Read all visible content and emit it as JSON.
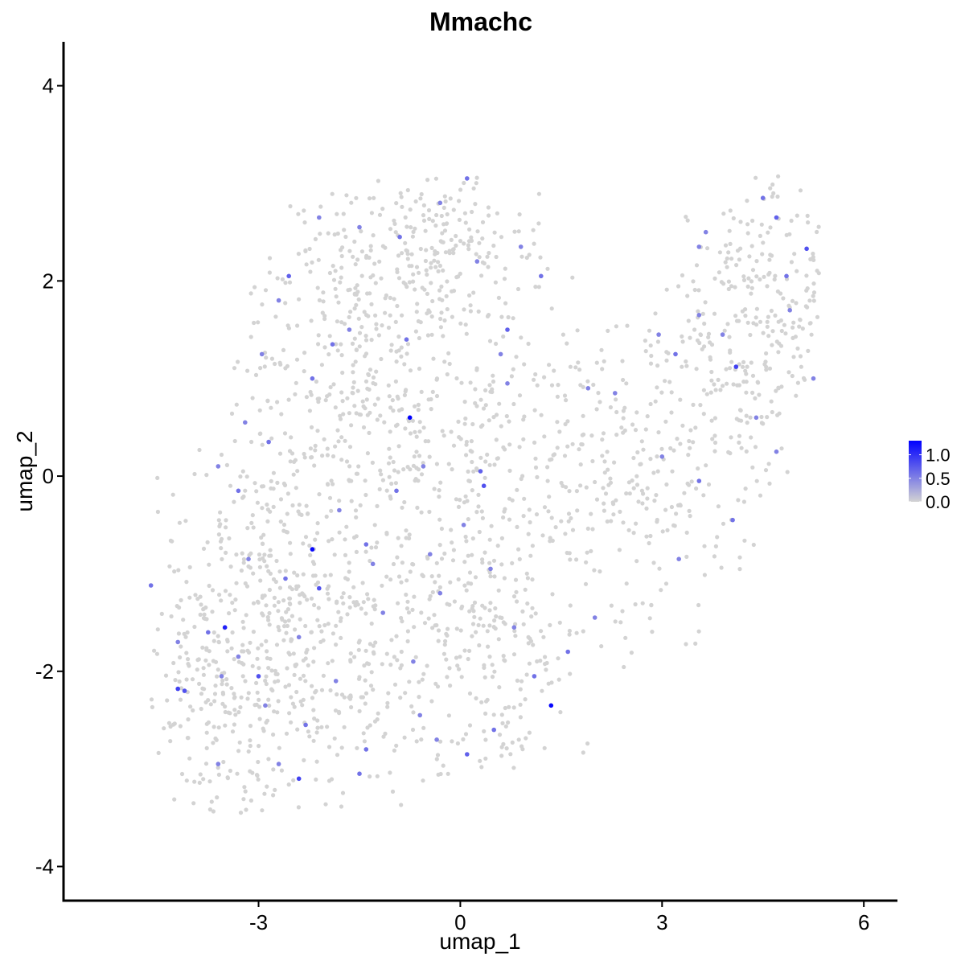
{
  "chart_data": {
    "type": "scatter",
    "title": "Mmachc",
    "xlabel": "umap_1",
    "ylabel": "umap_2",
    "xlim": [
      -5.9,
      6.5
    ],
    "ylim": [
      -4.35,
      4.45
    ],
    "x_ticks": [
      -3,
      0,
      3,
      6
    ],
    "y_ticks": [
      -4,
      -2,
      0,
      2,
      4
    ],
    "x_tick_labels": [
      "-3",
      "0",
      "3",
      "6"
    ],
    "y_tick_labels": [
      "-4",
      "-2",
      "0",
      "2",
      "4"
    ],
    "grid": false,
    "legend": {
      "placement": "right",
      "type": "colorbar",
      "min": 0.0,
      "max": 1.3,
      "ticks": [
        0.0,
        0.5,
        1.0
      ],
      "tick_labels": [
        "0.0",
        "0.5",
        "1.0"
      ],
      "color_low": "#d3d3d3",
      "color_high": "#0000ff"
    },
    "point_color_low": "#d3d3d3",
    "point_color_high": "#0000ff",
    "expressing_points": [
      {
        "x": -0.75,
        "y": 0.6,
        "v": 1.3
      },
      {
        "x": -2.2,
        "y": -0.75,
        "v": 1.25
      },
      {
        "x": 1.35,
        "y": -2.35,
        "v": 1.25
      },
      {
        "x": -3.5,
        "y": -1.55,
        "v": 1.1
      },
      {
        "x": -4.2,
        "y": -2.18,
        "v": 0.9
      },
      {
        "x": -4.1,
        "y": -2.2,
        "v": 0.8
      },
      {
        "x": -2.4,
        "y": -3.1,
        "v": 0.9
      },
      {
        "x": 4.1,
        "y": 1.12,
        "v": 0.9
      },
      {
        "x": 5.15,
        "y": 2.33,
        "v": 0.8
      },
      {
        "x": -2.1,
        "y": -1.15,
        "v": 0.8
      },
      {
        "x": 0.1,
        "y": -2.85,
        "v": 0.7
      },
      {
        "x": 0.35,
        "y": -0.1,
        "v": 0.8
      },
      {
        "x": -2.55,
        "y": 2.05,
        "v": 0.7
      },
      {
        "x": -3.0,
        "y": -2.05,
        "v": 0.8
      },
      {
        "x": -4.6,
        "y": -1.12,
        "v": 0.6
      },
      {
        "x": 0.7,
        "y": 1.5,
        "v": 0.7
      },
      {
        "x": 0.3,
        "y": 0.05,
        "v": 0.7
      },
      {
        "x": -1.9,
        "y": 1.35,
        "v": 0.6
      },
      {
        "x": -1.4,
        "y": -2.8,
        "v": 0.6
      },
      {
        "x": -0.3,
        "y": 2.8,
        "v": 0.5
      },
      {
        "x": 0.1,
        "y": 3.05,
        "v": 0.6
      },
      {
        "x": 1.2,
        "y": 2.05,
        "v": 0.6
      },
      {
        "x": -1.5,
        "y": 2.55,
        "v": 0.5
      },
      {
        "x": -0.9,
        "y": 2.45,
        "v": 0.6
      },
      {
        "x": 4.5,
        "y": 2.85,
        "v": 0.6
      },
      {
        "x": 4.7,
        "y": 2.65,
        "v": 0.7
      },
      {
        "x": 3.55,
        "y": 2.35,
        "v": 0.5
      },
      {
        "x": 2.95,
        "y": 1.45,
        "v": 0.5
      },
      {
        "x": 3.2,
        "y": 1.25,
        "v": 0.6
      },
      {
        "x": 4.85,
        "y": 2.05,
        "v": 0.6
      },
      {
        "x": 5.25,
        "y": 1.0,
        "v": 0.5
      },
      {
        "x": 3.0,
        "y": 0.2,
        "v": 0.5
      },
      {
        "x": 3.55,
        "y": -0.05,
        "v": 0.6
      },
      {
        "x": 4.05,
        "y": -0.45,
        "v": 0.6
      },
      {
        "x": 3.25,
        "y": -0.85,
        "v": 0.5
      },
      {
        "x": 1.6,
        "y": -1.8,
        "v": 0.6
      },
      {
        "x": 1.1,
        "y": -2.05,
        "v": 0.6
      },
      {
        "x": 0.5,
        "y": -2.6,
        "v": 0.6
      },
      {
        "x": -0.35,
        "y": -2.7,
        "v": 0.5
      },
      {
        "x": -0.6,
        "y": -2.45,
        "v": 0.5
      },
      {
        "x": -1.5,
        "y": -3.05,
        "v": 0.6
      },
      {
        "x": -2.3,
        "y": -2.55,
        "v": 0.6
      },
      {
        "x": -2.9,
        "y": -2.35,
        "v": 0.5
      },
      {
        "x": -3.3,
        "y": -1.85,
        "v": 0.5
      },
      {
        "x": -3.6,
        "y": -2.95,
        "v": 0.5
      },
      {
        "x": -3.75,
        "y": -1.6,
        "v": 0.6
      },
      {
        "x": -3.15,
        "y": -0.85,
        "v": 0.5
      },
      {
        "x": -3.3,
        "y": -0.15,
        "v": 0.6
      },
      {
        "x": -3.6,
        "y": 0.1,
        "v": 0.5
      },
      {
        "x": -3.2,
        "y": 0.55,
        "v": 0.5
      },
      {
        "x": -2.85,
        "y": 0.35,
        "v": 0.6
      },
      {
        "x": -2.2,
        "y": 1.0,
        "v": 0.6
      },
      {
        "x": -1.65,
        "y": 1.5,
        "v": 0.5
      },
      {
        "x": -0.8,
        "y": 1.4,
        "v": 0.6
      },
      {
        "x": -0.55,
        "y": 0.1,
        "v": 0.5
      },
      {
        "x": -0.95,
        "y": -0.15,
        "v": 0.6
      },
      {
        "x": -1.4,
        "y": -0.7,
        "v": 0.6
      },
      {
        "x": -1.8,
        "y": -0.35,
        "v": 0.5
      },
      {
        "x": -2.6,
        "y": -1.05,
        "v": 0.6
      },
      {
        "x": -2.4,
        "y": -1.65,
        "v": 0.5
      },
      {
        "x": -1.3,
        "y": -0.9,
        "v": 0.5
      },
      {
        "x": -0.45,
        "y": -0.8,
        "v": 0.5
      },
      {
        "x": -0.3,
        "y": -1.2,
        "v": 0.5
      },
      {
        "x": 0.45,
        "y": -0.95,
        "v": 0.5
      },
      {
        "x": 0.05,
        "y": -0.5,
        "v": 0.5
      },
      {
        "x": 0.6,
        "y": 1.25,
        "v": 0.5
      },
      {
        "x": 0.7,
        "y": 0.95,
        "v": 0.5
      },
      {
        "x": 1.9,
        "y": 0.9,
        "v": 0.5
      },
      {
        "x": 2.3,
        "y": 0.85,
        "v": 0.5
      },
      {
        "x": 3.55,
        "y": 1.65,
        "v": 0.5
      },
      {
        "x": 3.9,
        "y": 1.45,
        "v": 0.5
      },
      {
        "x": 4.4,
        "y": 0.6,
        "v": 0.5
      },
      {
        "x": 4.7,
        "y": 0.25,
        "v": 0.5
      },
      {
        "x": 4.9,
        "y": 1.7,
        "v": 0.5
      },
      {
        "x": 0.9,
        "y": 2.35,
        "v": 0.5
      },
      {
        "x": 0.25,
        "y": 2.2,
        "v": 0.5
      },
      {
        "x": -2.1,
        "y": 2.65,
        "v": 0.5
      },
      {
        "x": -2.7,
        "y": 1.8,
        "v": 0.5
      },
      {
        "x": -2.95,
        "y": 1.25,
        "v": 0.5
      },
      {
        "x": -1.15,
        "y": -1.4,
        "v": 0.5
      },
      {
        "x": -0.7,
        "y": -1.9,
        "v": 0.5
      },
      {
        "x": 0.8,
        "y": -1.55,
        "v": 0.5
      },
      {
        "x": 2.0,
        "y": -1.45,
        "v": 0.5
      },
      {
        "x": -1.85,
        "y": -2.1,
        "v": 0.5
      },
      {
        "x": -2.7,
        "y": -2.95,
        "v": 0.5
      },
      {
        "x": -4.2,
        "y": -1.7,
        "v": 0.5
      },
      {
        "x": -3.55,
        "y": -2.05,
        "v": 0.5
      },
      {
        "x": 3.65,
        "y": 2.5,
        "v": 0.5
      }
    ]
  }
}
